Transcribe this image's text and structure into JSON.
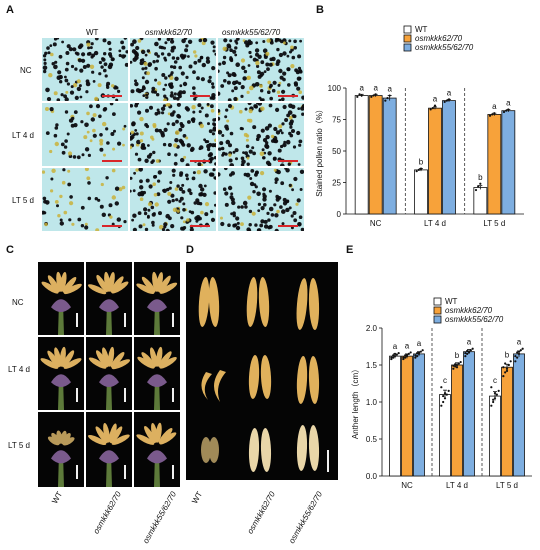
{
  "panels": {
    "A": {
      "label": "A",
      "columns": [
        "WT",
        "osmkkk62/70",
        "osmkkk55/62/70"
      ],
      "rows": [
        "NC",
        "LT 4 d",
        "LT 5 d"
      ]
    },
    "B": {
      "label": "B"
    },
    "C": {
      "label": "C",
      "rows": [
        "NC",
        "LT 4 d",
        "LT 5 d"
      ],
      "columns": [
        "WT",
        "osmkkk62/70",
        "osmkkk55/62/70"
      ]
    },
    "D": {
      "label": "D",
      "columns": [
        "WT",
        "osmkkk62/70",
        "osmkkk55/62/70"
      ]
    },
    "E": {
      "label": "E"
    }
  },
  "colors": {
    "wt": "#ffffff",
    "mut62": "#f7a23a",
    "mut55": "#7eaee0",
    "scale_red": "#d8262a",
    "micro_bg": "#bfe7ea"
  },
  "chart_data": [
    {
      "id": "B",
      "type": "bar",
      "categories": [
        "NC",
        "LT 4 d",
        "LT 5 d"
      ],
      "ylabel": "Stained pollen ratio（%）",
      "ylim": [
        0,
        100
      ],
      "yticks": [
        0,
        25,
        50,
        75,
        100
      ],
      "legend_position": "top",
      "series": [
        {
          "name": "WT",
          "color": "#ffffff",
          "values": [
            94,
            35,
            21
          ],
          "errors": [
            1,
            1,
            1.5
          ],
          "letters": [
            "a",
            "b",
            "b"
          ],
          "points": [
            [
              93,
              95,
              94
            ],
            [
              34,
              35,
              36
            ],
            [
              19,
              22,
              24
            ]
          ]
        },
        {
          "name": "osmkkk62/70",
          "color": "#f7a23a",
          "values": [
            94,
            84,
            79
          ],
          "errors": [
            1,
            1,
            1
          ],
          "letters": [
            "a",
            "a",
            "a"
          ],
          "points": [
            [
              93,
              94,
              95
            ],
            [
              83,
              84,
              86
            ],
            [
              78,
              79,
              80
            ]
          ]
        },
        {
          "name": "osmkkk55/62/70",
          "color": "#7eaee0",
          "values": [
            92,
            90,
            82
          ],
          "errors": [
            2,
            1,
            1
          ],
          "letters": [
            "a",
            "a",
            "a"
          ],
          "points": [
            [
              90,
              92,
              94
            ],
            [
              89,
              90,
              91
            ],
            [
              81,
              82,
              83
            ]
          ]
        }
      ]
    },
    {
      "id": "E",
      "type": "bar",
      "categories": [
        "NC",
        "LT 4 d",
        "LT 5 d"
      ],
      "ylabel": "Anther length（cm）",
      "ylim": [
        0,
        2.0
      ],
      "yticks": [
        0.0,
        0.5,
        1.0,
        1.5,
        2.0
      ],
      "legend_position": "top",
      "series": [
        {
          "name": "WT",
          "color": "#ffffff",
          "values": [
            1.62,
            1.1,
            1.08
          ],
          "errors": [
            0.03,
            0.06,
            0.06
          ],
          "letters": [
            "a",
            "c",
            "c"
          ],
          "points": [
            [
              1.58,
              1.6,
              1.62,
              1.64,
              1.66,
              1.6,
              1.63,
              1.65
            ],
            [
              0.95,
              1.0,
              1.05,
              1.1,
              1.15,
              1.2,
              1.08,
              1.12
            ],
            [
              0.95,
              1.0,
              1.05,
              1.1,
              1.15,
              1.2,
              1.03,
              1.12
            ]
          ]
        },
        {
          "name": "osmkkk62/70",
          "color": "#f7a23a",
          "values": [
            1.62,
            1.5,
            1.47
          ],
          "errors": [
            0.03,
            0.03,
            0.04
          ],
          "letters": [
            "a",
            "b",
            "b"
          ],
          "points": [
            [
              1.58,
              1.6,
              1.62,
              1.65,
              1.67,
              1.6,
              1.63,
              1.64
            ],
            [
              1.45,
              1.48,
              1.5,
              1.52,
              1.54,
              1.49,
              1.51,
              1.47
            ],
            [
              1.35,
              1.4,
              1.45,
              1.5,
              1.55,
              1.47,
              1.52,
              1.42
            ]
          ]
        },
        {
          "name": "osmkkk55/62/70",
          "color": "#7eaee0",
          "values": [
            1.65,
            1.68,
            1.65
          ],
          "errors": [
            0.03,
            0.03,
            0.04
          ],
          "letters": [
            "a",
            "a",
            "a"
          ],
          "points": [
            [
              1.6,
              1.62,
              1.65,
              1.68,
              1.7,
              1.63,
              1.66,
              1.67
            ],
            [
              1.62,
              1.65,
              1.68,
              1.7,
              1.72,
              1.66,
              1.69,
              1.67
            ],
            [
              1.55,
              1.6,
              1.65,
              1.7,
              1.72,
              1.62,
              1.67,
              1.68
            ]
          ]
        }
      ]
    }
  ]
}
